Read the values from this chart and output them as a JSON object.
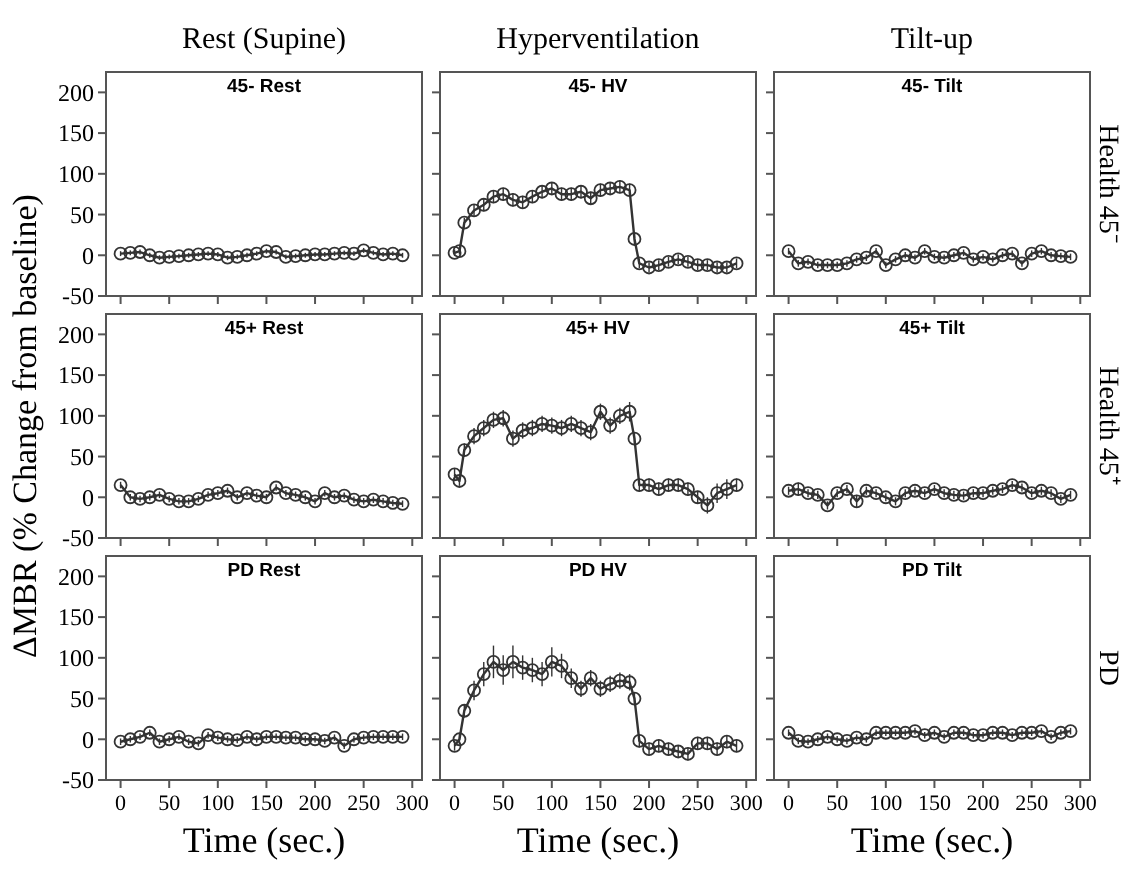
{
  "chart_data": [
    {
      "type": "line",
      "title": "45- Rest",
      "subtitle": "Rest (Supine)",
      "x": [
        0,
        10,
        20,
        30,
        40,
        50,
        60,
        70,
        80,
        90,
        100,
        110,
        120,
        130,
        140,
        150,
        160,
        170,
        180,
        190,
        200,
        210,
        220,
        230,
        240,
        250,
        260,
        270,
        280,
        290
      ],
      "values": [
        2,
        3,
        4,
        0,
        -3,
        -2,
        -1,
        0,
        1,
        2,
        1,
        -3,
        -2,
        0,
        2,
        5,
        4,
        -2,
        -1,
        0,
        1,
        1,
        2,
        3,
        2,
        6,
        3,
        1,
        2,
        0
      ],
      "errors": [
        3,
        3,
        3,
        3,
        3,
        3,
        3,
        3,
        3,
        3,
        3,
        3,
        3,
        3,
        3,
        3,
        3,
        3,
        3,
        3,
        3,
        3,
        3,
        3,
        3,
        3,
        3,
        3,
        3,
        3
      ],
      "color": "#333333",
      "marker": "circle",
      "xlim": [
        -15,
        310
      ],
      "ylim": [
        -50,
        225
      ],
      "xticks": [
        0,
        50,
        100,
        150,
        200,
        250,
        300
      ],
      "yticks": [
        -50,
        0,
        50,
        100,
        150,
        200
      ],
      "tick_labels": "y"
    },
    {
      "type": "line",
      "title": "45- HV",
      "subtitle": "Hyperventilation",
      "x": [
        0,
        5,
        10,
        20,
        30,
        40,
        50,
        60,
        70,
        80,
        90,
        100,
        110,
        120,
        130,
        140,
        150,
        160,
        170,
        180,
        185,
        190,
        200,
        210,
        220,
        230,
        240,
        250,
        260,
        270,
        280,
        290
      ],
      "values": [
        3,
        5,
        40,
        55,
        62,
        72,
        75,
        68,
        65,
        72,
        78,
        82,
        75,
        75,
        78,
        70,
        80,
        82,
        84,
        80,
        20,
        -10,
        -15,
        -12,
        -8,
        -5,
        -8,
        -12,
        -12,
        -15,
        -15,
        -10
      ],
      "errors": [
        4,
        4,
        6,
        8,
        8,
        8,
        8,
        8,
        8,
        8,
        8,
        8,
        8,
        8,
        8,
        8,
        8,
        8,
        8,
        8,
        8,
        6,
        6,
        6,
        6,
        6,
        6,
        6,
        6,
        6,
        6,
        6
      ],
      "color": "#333333",
      "marker": "circle",
      "xlim": [
        -15,
        310
      ],
      "ylim": [
        -50,
        225
      ],
      "xticks": [
        0,
        50,
        100,
        150,
        200,
        250,
        300
      ],
      "yticks": [
        -50,
        0,
        50,
        100,
        150,
        200
      ],
      "tick_labels": false
    },
    {
      "type": "line",
      "title": "45- Tilt",
      "subtitle": "Tilt-up",
      "y2label": "Health 45⁻",
      "x": [
        0,
        10,
        20,
        30,
        40,
        50,
        60,
        70,
        80,
        90,
        100,
        110,
        120,
        130,
        140,
        150,
        160,
        170,
        180,
        190,
        200,
        210,
        220,
        230,
        240,
        250,
        260,
        270,
        280,
        290
      ],
      "values": [
        5,
        -10,
        -8,
        -12,
        -12,
        -12,
        -10,
        -5,
        -3,
        5,
        -12,
        -5,
        0,
        -3,
        5,
        -2,
        -3,
        0,
        3,
        -5,
        -2,
        -5,
        0,
        2,
        -10,
        2,
        5,
        0,
        -1,
        -2
      ],
      "errors": [
        4,
        4,
        4,
        4,
        4,
        4,
        4,
        4,
        4,
        4,
        4,
        4,
        4,
        4,
        4,
        4,
        4,
        4,
        4,
        4,
        4,
        4,
        4,
        4,
        4,
        4,
        4,
        4,
        4,
        4
      ],
      "color": "#333333",
      "marker": "circle",
      "xlim": [
        -15,
        310
      ],
      "ylim": [
        -50,
        225
      ],
      "xticks": [
        0,
        50,
        100,
        150,
        200,
        250,
        300
      ],
      "yticks": [
        -50,
        0,
        50,
        100,
        150,
        200
      ],
      "tick_labels": false
    },
    {
      "type": "line",
      "title": "45+ Rest",
      "ylabel": "ΔMBR  (% Change from baseline)",
      "x": [
        0,
        10,
        20,
        30,
        40,
        50,
        60,
        70,
        80,
        90,
        100,
        110,
        120,
        130,
        140,
        150,
        160,
        170,
        180,
        190,
        200,
        210,
        220,
        230,
        240,
        250,
        260,
        270,
        280,
        290
      ],
      "values": [
        15,
        0,
        -2,
        0,
        3,
        -2,
        -5,
        -5,
        -2,
        3,
        5,
        8,
        0,
        5,
        2,
        0,
        12,
        5,
        3,
        0,
        -5,
        5,
        0,
        2,
        -3,
        -5,
        -3,
        -5,
        -7,
        -8
      ],
      "errors": [
        4,
        4,
        4,
        4,
        4,
        4,
        4,
        4,
        4,
        4,
        4,
        4,
        4,
        4,
        4,
        4,
        4,
        4,
        4,
        4,
        4,
        4,
        4,
        4,
        4,
        4,
        4,
        4,
        4,
        4
      ],
      "color": "#333333",
      "marker": "circle",
      "xlim": [
        -15,
        310
      ],
      "ylim": [
        -50,
        225
      ],
      "xticks": [
        0,
        50,
        100,
        150,
        200,
        250,
        300
      ],
      "yticks": [
        -50,
        0,
        50,
        100,
        150,
        200
      ],
      "tick_labels": "y"
    },
    {
      "type": "line",
      "title": "45+ HV",
      "x": [
        0,
        5,
        10,
        20,
        30,
        40,
        50,
        60,
        70,
        80,
        90,
        100,
        110,
        120,
        130,
        140,
        150,
        160,
        170,
        180,
        185,
        190,
        200,
        210,
        220,
        230,
        240,
        250,
        260,
        270,
        280,
        290
      ],
      "values": [
        28,
        20,
        58,
        75,
        85,
        95,
        97,
        72,
        82,
        85,
        90,
        88,
        85,
        90,
        85,
        80,
        105,
        88,
        100,
        105,
        72,
        15,
        15,
        10,
        15,
        15,
        10,
        0,
        -10,
        5,
        10,
        15
      ],
      "errors": [
        8,
        6,
        8,
        10,
        10,
        10,
        10,
        10,
        10,
        10,
        10,
        10,
        10,
        10,
        10,
        10,
        10,
        10,
        10,
        12,
        8,
        8,
        8,
        8,
        8,
        8,
        8,
        8,
        10,
        12,
        12,
        8
      ],
      "color": "#333333",
      "marker": "circle",
      "xlim": [
        -15,
        310
      ],
      "ylim": [
        -50,
        225
      ],
      "xticks": [
        0,
        50,
        100,
        150,
        200,
        250,
        300
      ],
      "yticks": [
        -50,
        0,
        50,
        100,
        150,
        200
      ],
      "tick_labels": false
    },
    {
      "type": "line",
      "title": "45+ Tilt",
      "y2label": "Health 45⁺",
      "x": [
        0,
        10,
        20,
        30,
        40,
        50,
        60,
        70,
        80,
        90,
        100,
        110,
        120,
        130,
        140,
        150,
        160,
        170,
        180,
        190,
        200,
        210,
        220,
        230,
        240,
        250,
        260,
        270,
        280,
        290
      ],
      "values": [
        8,
        10,
        5,
        3,
        -10,
        5,
        10,
        -5,
        8,
        5,
        0,
        -5,
        5,
        8,
        5,
        10,
        5,
        3,
        2,
        5,
        5,
        8,
        10,
        15,
        12,
        5,
        8,
        5,
        -2,
        3
      ],
      "errors": [
        5,
        8,
        5,
        5,
        5,
        5,
        5,
        8,
        5,
        5,
        5,
        5,
        5,
        5,
        5,
        5,
        5,
        5,
        5,
        5,
        5,
        5,
        5,
        5,
        5,
        5,
        5,
        5,
        5,
        5
      ],
      "color": "#333333",
      "marker": "circle",
      "xlim": [
        -15,
        310
      ],
      "ylim": [
        -50,
        225
      ],
      "xticks": [
        0,
        50,
        100,
        150,
        200,
        250,
        300
      ],
      "yticks": [
        -50,
        0,
        50,
        100,
        150,
        200
      ],
      "tick_labels": false
    },
    {
      "type": "line",
      "title": "PD Rest",
      "xlabel": "Time  (sec.)",
      "x": [
        0,
        10,
        20,
        30,
        40,
        50,
        60,
        70,
        80,
        90,
        100,
        110,
        120,
        130,
        140,
        150,
        160,
        170,
        180,
        190,
        200,
        210,
        220,
        230,
        240,
        250,
        260,
        270,
        280,
        290
      ],
      "values": [
        -3,
        0,
        3,
        8,
        -3,
        0,
        3,
        -3,
        -5,
        5,
        2,
        0,
        -1,
        3,
        0,
        3,
        3,
        2,
        2,
        0,
        0,
        -2,
        2,
        -8,
        0,
        2,
        3,
        3,
        3,
        3
      ],
      "errors": [
        4,
        4,
        4,
        4,
        4,
        4,
        4,
        4,
        4,
        4,
        4,
        4,
        4,
        4,
        4,
        4,
        4,
        4,
        4,
        4,
        4,
        4,
        4,
        4,
        4,
        4,
        4,
        4,
        4,
        4
      ],
      "color": "#333333",
      "marker": "circle",
      "xlim": [
        -15,
        310
      ],
      "ylim": [
        -50,
        225
      ],
      "xticks": [
        0,
        50,
        100,
        150,
        200,
        250,
        300
      ],
      "yticks": [
        -50,
        0,
        50,
        100,
        150,
        200
      ]
    },
    {
      "type": "line",
      "title": "PD HV",
      "xlabel": "Time  (sec.)",
      "x": [
        0,
        5,
        10,
        20,
        30,
        40,
        50,
        60,
        70,
        80,
        90,
        100,
        110,
        120,
        130,
        140,
        150,
        160,
        170,
        180,
        185,
        190,
        200,
        210,
        220,
        230,
        240,
        250,
        260,
        270,
        280,
        290
      ],
      "values": [
        -8,
        0,
        35,
        60,
        80,
        95,
        85,
        95,
        88,
        85,
        80,
        95,
        90,
        75,
        62,
        75,
        62,
        68,
        72,
        70,
        50,
        -2,
        -12,
        -8,
        -12,
        -15,
        -18,
        -5,
        -5,
        -12,
        -3,
        -8
      ],
      "errors": [
        6,
        6,
        8,
        12,
        15,
        20,
        18,
        20,
        15,
        15,
        15,
        18,
        15,
        12,
        10,
        10,
        10,
        10,
        10,
        10,
        8,
        8,
        8,
        8,
        8,
        8,
        8,
        8,
        8,
        8,
        8,
        8
      ],
      "color": "#333333",
      "marker": "circle",
      "xlim": [
        -15,
        310
      ],
      "ylim": [
        -50,
        225
      ],
      "xticks": [
        0,
        50,
        100,
        150,
        200,
        250,
        300
      ],
      "yticks": [
        -50,
        0,
        50,
        100,
        150,
        200
      ],
      "tick_labels": "x"
    },
    {
      "type": "line",
      "title": "PD Tilt",
      "xlabel": "Time  (sec.)",
      "y2label": "PD",
      "x": [
        0,
        10,
        20,
        30,
        40,
        50,
        60,
        70,
        80,
        90,
        100,
        110,
        120,
        130,
        140,
        150,
        160,
        170,
        180,
        190,
        200,
        210,
        220,
        230,
        240,
        250,
        260,
        270,
        280,
        290
      ],
      "values": [
        8,
        -2,
        -3,
        0,
        3,
        0,
        -2,
        2,
        0,
        8,
        8,
        8,
        8,
        10,
        5,
        8,
        3,
        8,
        8,
        5,
        5,
        8,
        8,
        5,
        8,
        8,
        10,
        3,
        8,
        10
      ],
      "errors": [
        4,
        4,
        4,
        4,
        4,
        4,
        4,
        4,
        4,
        4,
        4,
        4,
        4,
        4,
        4,
        4,
        4,
        4,
        4,
        4,
        4,
        4,
        4,
        4,
        4,
        4,
        4,
        4,
        4,
        4
      ],
      "color": "#333333",
      "marker": "circle",
      "xlim": [
        -15,
        310
      ],
      "ylim": [
        -50,
        225
      ],
      "xticks": [
        0,
        50,
        100,
        150,
        200,
        250,
        300
      ],
      "yticks": [
        -50,
        0,
        50,
        100,
        150,
        200
      ],
      "tick_labels": "x"
    }
  ]
}
